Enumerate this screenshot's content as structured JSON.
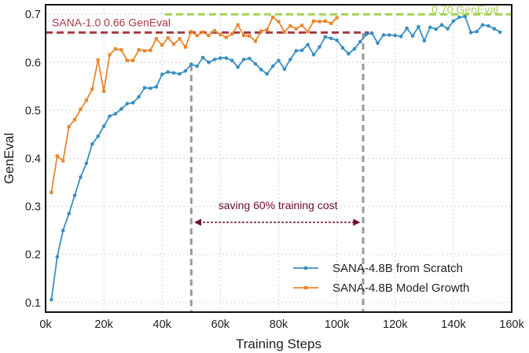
{
  "chart_data": {
    "type": "line",
    "xlabel": "Training Steps",
    "ylabel": "GenEval",
    "xlim": [
      0,
      160000
    ],
    "ylim": [
      0.08,
      0.72
    ],
    "x_ticks": [
      0,
      20000,
      40000,
      60000,
      80000,
      100000,
      120000,
      140000,
      160000
    ],
    "x_tick_labels": [
      "0k",
      "20k",
      "40k",
      "60k",
      "80k",
      "100k",
      "120k",
      "140k",
      "160k"
    ],
    "y_ticks": [
      0.1,
      0.2,
      0.3,
      0.4,
      0.5,
      0.6,
      0.7
    ],
    "y_tick_labels": [
      "0.1",
      "0.2",
      "0.3",
      "0.4",
      "0.5",
      "0.6",
      "0.7"
    ],
    "grid": true,
    "legend_position": "bottom-right",
    "series": [
      {
        "name": "SANA-4.8B from Scratch",
        "color": "#3a8fc1",
        "x": [
          2000,
          4000,
          6000,
          8000,
          10000,
          12000,
          14000,
          16000,
          18000,
          20000,
          22000,
          24000,
          26000,
          28000,
          30000,
          32000,
          34000,
          36000,
          38000,
          40000,
          42000,
          44000,
          46000,
          48000,
          50000,
          52000,
          54000,
          56000,
          58000,
          60000,
          62000,
          64000,
          66000,
          68000,
          70000,
          72000,
          74000,
          76000,
          78000,
          80000,
          82000,
          84000,
          86000,
          88000,
          90000,
          92000,
          94000,
          96000,
          98000,
          100000,
          102000,
          104000,
          106000,
          108000,
          110000,
          112000,
          114000,
          116000,
          118000,
          120000,
          122000,
          124000,
          126000,
          128000,
          130000,
          132000,
          134000,
          136000,
          138000,
          140000,
          142000,
          144000,
          146000,
          148000,
          150000,
          152000,
          154000,
          156000
        ],
        "y": [
          0.106,
          0.195,
          0.25,
          0.285,
          0.323,
          0.361,
          0.39,
          0.43,
          0.446,
          0.467,
          0.488,
          0.493,
          0.503,
          0.514,
          0.516,
          0.528,
          0.547,
          0.546,
          0.549,
          0.575,
          0.58,
          0.578,
          0.576,
          0.582,
          0.596,
          0.592,
          0.61,
          0.6,
          0.606,
          0.609,
          0.609,
          0.604,
          0.59,
          0.606,
          0.608,
          0.597,
          0.585,
          0.576,
          0.592,
          0.604,
          0.586,
          0.606,
          0.624,
          0.625,
          0.637,
          0.616,
          0.632,
          0.653,
          0.65,
          0.646,
          0.63,
          0.618,
          0.628,
          0.643,
          0.658,
          0.661,
          0.64,
          0.657,
          0.657,
          0.656,
          0.654,
          0.671,
          0.655,
          0.674,
          0.645,
          0.673,
          0.669,
          0.678,
          0.67,
          0.686,
          0.694,
          0.695,
          0.662,
          0.664,
          0.678,
          0.676,
          0.67,
          0.663
        ]
      },
      {
        "name": "SANA-4.8B Model Growth",
        "color": "#e8872e",
        "x": [
          2000,
          4000,
          6000,
          8000,
          10000,
          12000,
          14000,
          16000,
          18000,
          20000,
          22000,
          24000,
          26000,
          28000,
          30000,
          32000,
          34000,
          36000,
          38000,
          40000,
          42000,
          44000,
          46000,
          48000,
          50000,
          52000,
          54000,
          56000,
          58000,
          60000,
          62000,
          64000,
          66000,
          68000,
          70000,
          72000,
          74000,
          76000,
          78000,
          80000,
          82000,
          84000,
          86000,
          88000,
          90000,
          92000,
          94000,
          96000,
          98000,
          100000
        ],
        "y": [
          0.329,
          0.405,
          0.395,
          0.466,
          0.481,
          0.502,
          0.521,
          0.544,
          0.605,
          0.54,
          0.616,
          0.628,
          0.626,
          0.604,
          0.604,
          0.626,
          0.624,
          0.625,
          0.649,
          0.636,
          0.651,
          0.638,
          0.649,
          0.632,
          0.664,
          0.656,
          0.663,
          0.656,
          0.666,
          0.658,
          0.652,
          0.659,
          0.678,
          0.656,
          0.655,
          0.644,
          0.665,
          0.668,
          0.694,
          0.685,
          0.663,
          0.676,
          0.67,
          0.677,
          0.664,
          0.686,
          0.685,
          0.686,
          0.681,
          0.693
        ]
      }
    ],
    "reference_lines": [
      {
        "label": "SANA-1.0 0.66 GenEval",
        "y": 0.662,
        "x_from": 0,
        "x_to": 111000,
        "color": "#a83a45"
      },
      {
        "label": "0.70 GenEval",
        "y": 0.7,
        "x_from": 41000,
        "x_to": 160000,
        "color": "#a6d151"
      }
    ],
    "vertical_markers": [
      {
        "x": 50000,
        "y_top": 0.595
      },
      {
        "x": 109000,
        "y_top": 0.661
      }
    ],
    "annotation": {
      "text": "saving 60% training cost",
      "x_from": 51000,
      "x_to": 108000,
      "y": 0.267,
      "color": "#6b1024"
    }
  }
}
